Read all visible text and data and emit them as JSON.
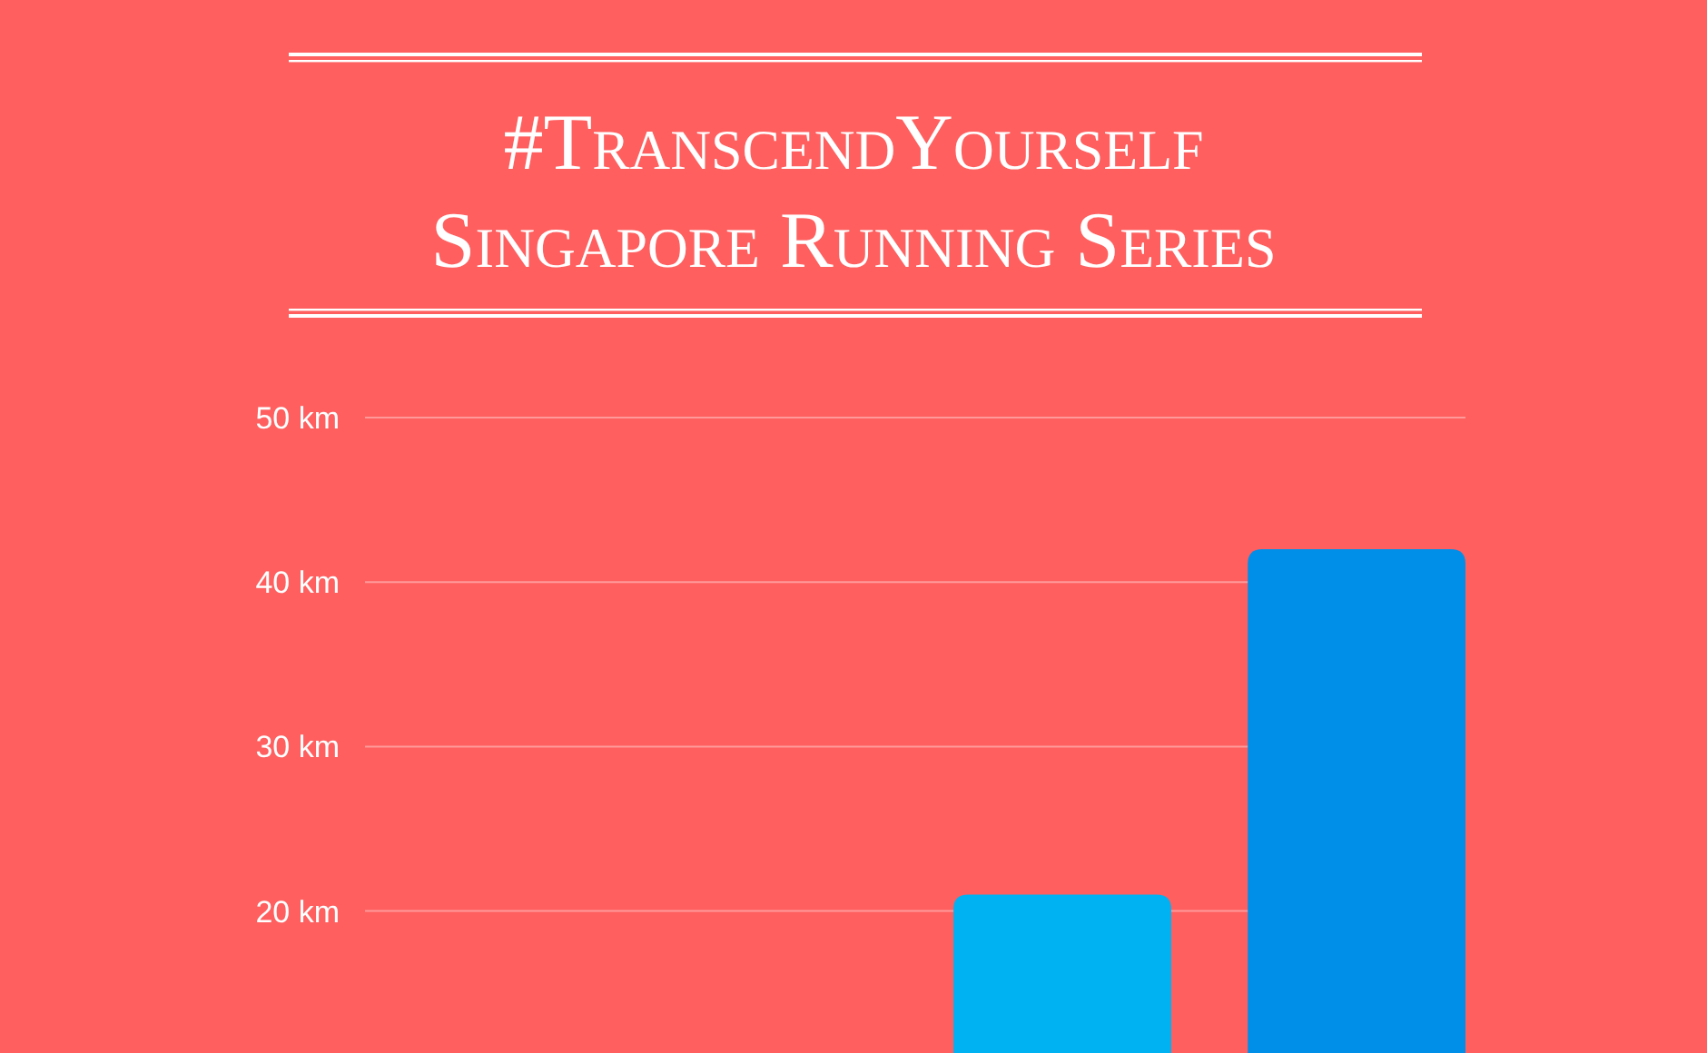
{
  "chart_data": {
    "type": "bar",
    "title": "#TranscendYourself",
    "subtitle": "Singapore Running Series",
    "categories": [
      null,
      null,
      null,
      null
    ],
    "values": [
      null,
      null,
      21,
      42
    ],
    "colors": [
      null,
      null,
      "#00b2f2",
      "#008fe8"
    ],
    "ylim": [
      0,
      50
    ],
    "yticks": [
      {
        "value": 20,
        "label": "20 km"
      },
      {
        "value": 30,
        "label": "30 km"
      },
      {
        "value": 40,
        "label": "40 km"
      },
      {
        "value": 50,
        "label": "50 km"
      }
    ],
    "grid": "y"
  }
}
